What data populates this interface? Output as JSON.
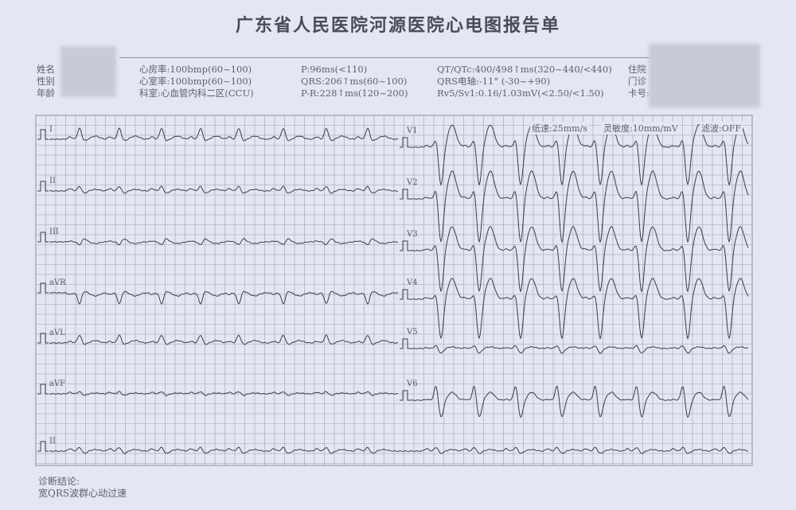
{
  "title": "广东省人民医院河源医院心电图报告单",
  "patient": {
    "name_label": "姓名",
    "sex_label": "性别",
    "age_label": "年龄",
    "inpatient_label": "住院",
    "outpatient_label": "门诊",
    "card_label": "卡号:"
  },
  "measurements": {
    "atrial_rate": "心房率:100bmp(60~100)",
    "ventricular_rate": "心室率:100bmp(60~100)",
    "department": "科室:心血管内科二区(CCU)",
    "p": "P:96ms(<110)",
    "qrs": "QRS:206↑ms(60~100)",
    "pr": "P-R:228↑ms(120~200)",
    "qt_qtc": "QT/QTc:400/498↑ms(320~440/<440)",
    "qrs_axis": "QRS电轴:-11° (-30~+90)",
    "rv5_sv1": "Rv5/Sv1:0.16/1.03mV(<2.50/<1.50)"
  },
  "recording": {
    "paper_speed": "纸速:25mm/s",
    "sensitivity": "灵敏度:10mm/mV",
    "filter": "滤波:OFF"
  },
  "leads_left": [
    "I",
    "II",
    "III",
    "aVR",
    "aVL",
    "aVF",
    "II"
  ],
  "leads_right": [
    "V1",
    "V2",
    "V3",
    "V4",
    "V5",
    "V6"
  ],
  "diagnosis": {
    "label": "诊断结论:",
    "text": "宽QRS波群心动过速"
  },
  "colors": {
    "grid": "#8c8ea0",
    "trace": "#3c3c48",
    "paper": "#e4e6f2"
  }
}
